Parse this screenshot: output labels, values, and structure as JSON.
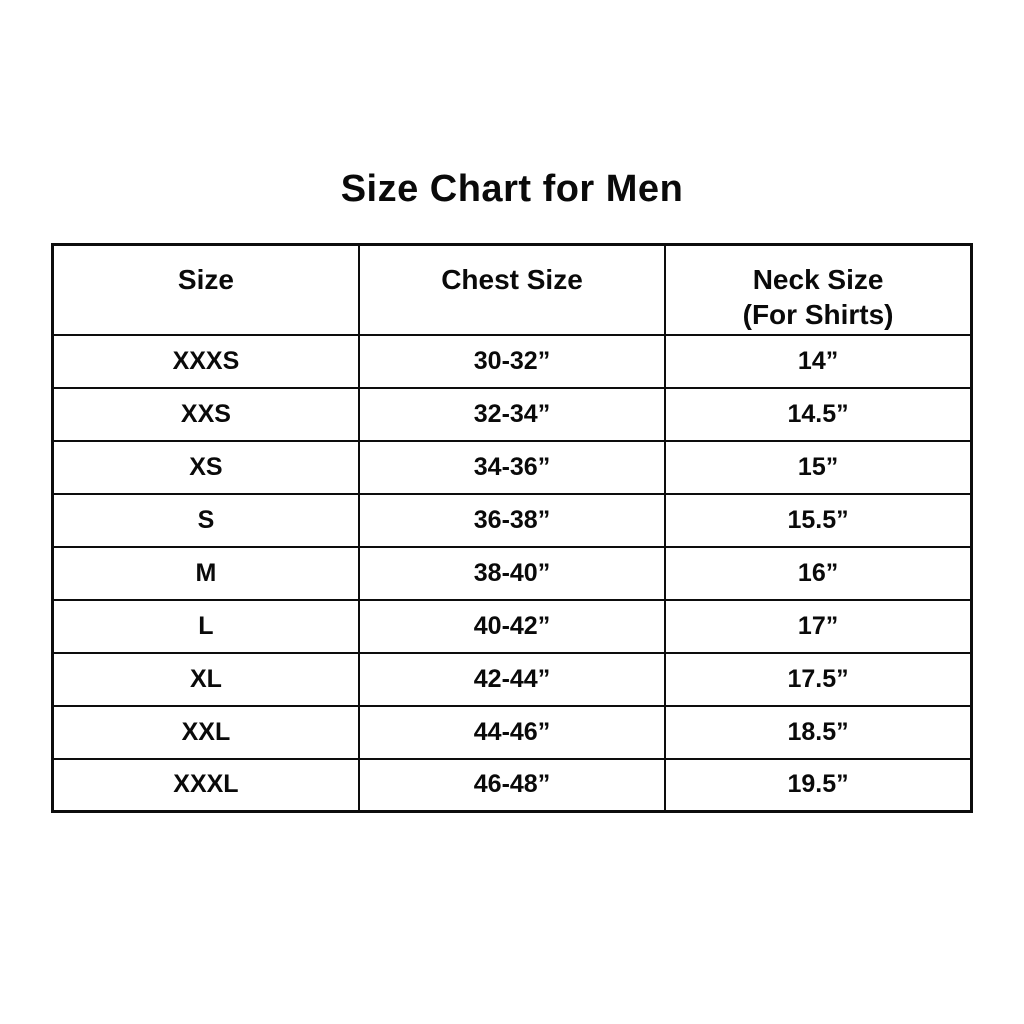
{
  "title": "Size Chart for Men",
  "table": {
    "columns": [
      {
        "label": "Size"
      },
      {
        "label": "Chest Size"
      },
      {
        "label": "Neck Size",
        "sublabel": "(For Shirts)"
      }
    ],
    "rows": [
      {
        "size": "XXXS",
        "chest": "30-32”",
        "neck": "14”"
      },
      {
        "size": "XXS",
        "chest": "32-34”",
        "neck": "14.5”"
      },
      {
        "size": "XS",
        "chest": "34-36”",
        "neck": "15”"
      },
      {
        "size": "S",
        "chest": "36-38”",
        "neck": "15.5”"
      },
      {
        "size": "M",
        "chest": "38-40”",
        "neck": "16”"
      },
      {
        "size": "L",
        "chest": "40-42”",
        "neck": "17”"
      },
      {
        "size": "XL",
        "chest": "42-44”",
        "neck": "17.5”"
      },
      {
        "size": "XXL",
        "chest": "44-46”",
        "neck": "18.5”"
      },
      {
        "size": "XXXL",
        "chest": "46-48”",
        "neck": "19.5”"
      }
    ]
  },
  "colors": {
    "background": "#ffffff",
    "text": "#0a0a0a",
    "border": "#0d0d0d"
  }
}
